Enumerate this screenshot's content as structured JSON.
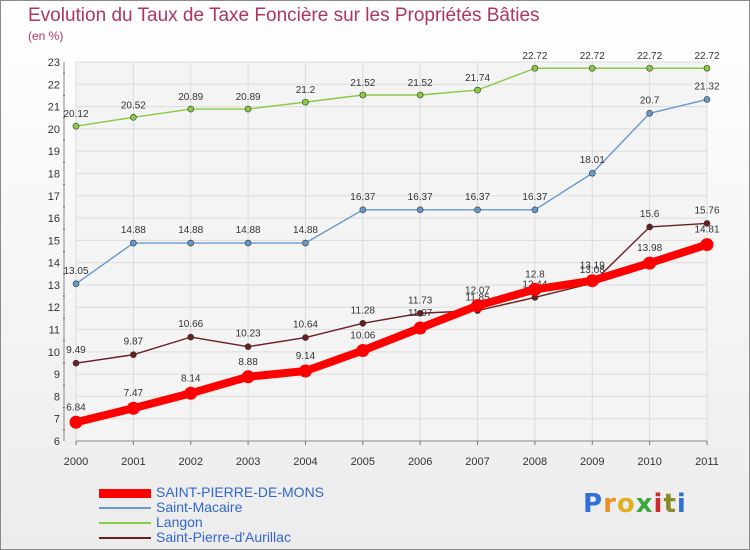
{
  "chart_data": {
    "type": "line",
    "title": "Evolution du Taux de Taxe Foncière sur les Propriétés Bâties",
    "ylabel": "(en %)",
    "xlabel": "",
    "categories": [
      "2000",
      "2001",
      "2002",
      "2003",
      "2004",
      "2005",
      "2006",
      "2007",
      "2008",
      "2009",
      "2010",
      "2011"
    ],
    "ylim": [
      6,
      23
    ],
    "yticks": [
      "6",
      "7",
      "8",
      "9",
      "10",
      "11",
      "12",
      "13",
      "14",
      "15",
      "16",
      "17",
      "18",
      "19",
      "20",
      "21",
      "22",
      "23"
    ],
    "grid": true,
    "legend_position": "bottom-left",
    "series": [
      {
        "name": "SAINT-PIERRE-DE-MONS",
        "color": "#ff0000",
        "values": [
          6.84,
          7.47,
          8.14,
          8.88,
          9.14,
          10.06,
          11.07,
          12.07,
          12.8,
          13.19,
          13.98,
          14.81
        ],
        "labels": [
          "6.84",
          "7.47",
          "8.14",
          "8.88",
          "9.14",
          "10.06",
          "11.07",
          "12.07",
          "12.8",
          "13.19",
          "13.98",
          "14.81"
        ]
      },
      {
        "name": "Saint-Macaire",
        "color": "#6699cc",
        "values": [
          13.05,
          14.88,
          14.88,
          14.88,
          14.88,
          16.37,
          16.37,
          16.37,
          16.37,
          18.01,
          20.7,
          21.32
        ],
        "labels": [
          "13.05",
          "14.88",
          "14.88",
          "14.88",
          "14.88",
          "16.37",
          "16.37",
          "16.37",
          "16.37",
          "18.01",
          "20.7",
          "21.32"
        ]
      },
      {
        "name": "Langon",
        "color": "#88cc44",
        "values": [
          20.12,
          20.52,
          20.89,
          20.89,
          21.2,
          21.52,
          21.52,
          21.74,
          22.72,
          22.72,
          22.72,
          22.72
        ],
        "labels": [
          "20.12",
          "20.52",
          "20.89",
          "20.89",
          "21.2",
          "21.52",
          "21.52",
          "21.74",
          "22.72",
          "22.72",
          "22.72",
          "22.72"
        ]
      },
      {
        "name": "Saint-Pierre-d'Aurillac",
        "color": "#6b1f1f",
        "values": [
          9.49,
          9.87,
          10.66,
          10.23,
          10.64,
          11.28,
          11.73,
          11.85,
          12.44,
          13.08,
          15.6,
          15.76
        ],
        "labels": [
          "9.49",
          "9.87",
          "10.66",
          "10.23",
          "10.64",
          "11.28",
          "11.73",
          "11.85",
          "12.44",
          "13.08",
          "15.6",
          "15.76"
        ]
      }
    ]
  },
  "brand": {
    "letters": [
      "P",
      "r",
      "o",
      "x",
      "i",
      "t",
      "i"
    ],
    "colors": [
      "#2f6fd6",
      "#e8902a",
      "#e0b020",
      "#3aa83a",
      "#cc2a2a",
      "#8a8a2a",
      "#2f6fd6"
    ]
  }
}
